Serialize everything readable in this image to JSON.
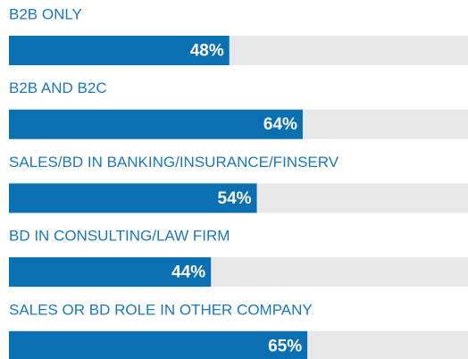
{
  "chart_data": {
    "type": "bar",
    "orientation": "horizontal",
    "categories": [
      "B2B ONLY",
      "B2B AND B2C",
      "SALES/BD IN BANKING/INSURANCE/FINSERV",
      "BD IN CONSULTING/LAW FIRM",
      "SALES OR BD ROLE IN OTHER COMPANY"
    ],
    "values": [
      48,
      64,
      54,
      44,
      65
    ],
    "value_labels": [
      "48%",
      "64%",
      "54%",
      "44%",
      "65%"
    ],
    "color": "#0a70b2",
    "track_color": "#e8e8e8",
    "xlim": [
      0,
      100
    ]
  }
}
